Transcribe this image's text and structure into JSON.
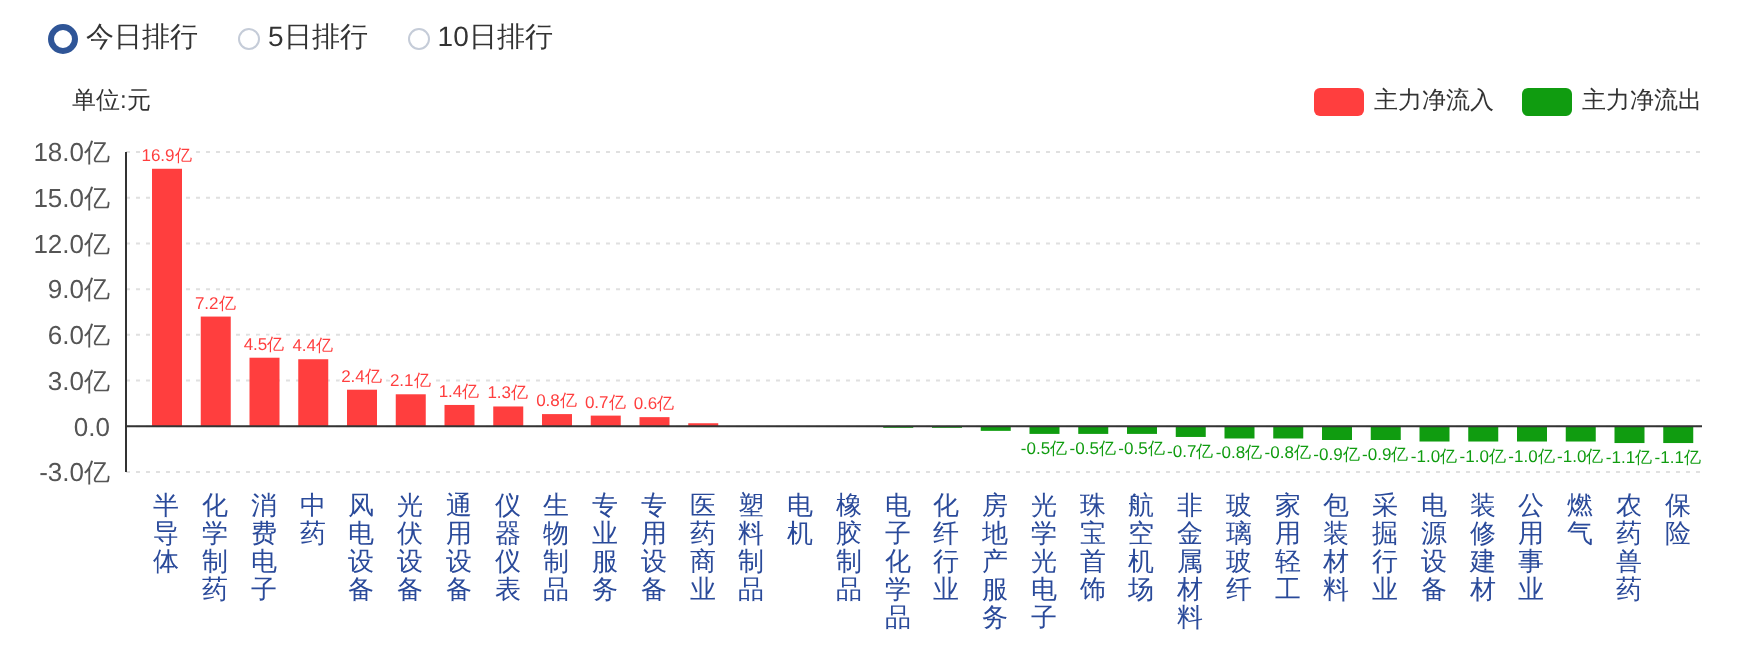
{
  "chart_data": {
    "type": "bar",
    "ylabel": "单位:元",
    "annotations": [
      "今日排行",
      "5日排行",
      "10日排行"
    ],
    "categories": [
      "半导体",
      "化学制药",
      "消费电子",
      "中药",
      "风电设备",
      "光伏设备",
      "通用设备",
      "仪器仪表",
      "生物制品",
      "专业服务",
      "专用设备",
      "医药商业",
      "塑料制品",
      "电机",
      "橡胶制品",
      "电子化学品",
      "化纤行业",
      "房地产服务",
      "光学光电子",
      "珠宝首饰",
      "航空机场",
      "非金属材料",
      "玻璃玻纤",
      "家用轻工",
      "包装材料",
      "采掘行业",
      "电源设备",
      "装修建材",
      "公用事业",
      "燃气",
      "农药兽药",
      "保险"
    ],
    "stacked": true,
    "series": [
      {
        "name": "主力净流入",
        "color": "#ff3e3e",
        "values": [
          16.9,
          7.2,
          4.5,
          4.4,
          2.4,
          2.1,
          1.4,
          1.3,
          0.8,
          0.7,
          0.6,
          0.2,
          null,
          0,
          null,
          null,
          null,
          null,
          null,
          null,
          null,
          null,
          null,
          null,
          null,
          null,
          null,
          null,
          null,
          null,
          null,
          null
        ],
        "value_labels": [
          "16.9亿",
          "7.2亿",
          "4.5亿",
          "4.4亿",
          "2.4亿",
          "2.1亿",
          "1.4亿",
          "1.3亿",
          "0.8亿",
          "0.7亿",
          "0.6亿",
          null,
          null,
          null,
          null,
          null,
          null,
          null,
          null,
          null,
          null,
          null,
          null,
          null,
          null,
          null,
          null,
          null,
          null,
          null,
          null,
          null
        ]
      },
      {
        "name": "主力净流出",
        "color": "#109c10",
        "values": [
          null,
          null,
          null,
          null,
          null,
          null,
          null,
          null,
          null,
          null,
          null,
          null,
          null,
          null,
          0,
          -0.1,
          -0.1,
          -0.3,
          -0.5,
          -0.5,
          -0.5,
          -0.7,
          -0.8,
          -0.8,
          -0.9,
          -0.9,
          -1.0,
          -1.0,
          -1.0,
          -1.0,
          -1.1,
          -1.1
        ],
        "value_labels": [
          null,
          null,
          null,
          null,
          null,
          null,
          null,
          null,
          null,
          null,
          null,
          null,
          null,
          null,
          null,
          null,
          null,
          null,
          "-0.5亿",
          "-0.5亿",
          "-0.5亿",
          "-0.7亿",
          "-0.8亿",
          "-0.8亿",
          "-0.9亿",
          "-0.9亿",
          "-1.0亿",
          "-1.0亿",
          "-1.0亿",
          "-1.0亿",
          "-1.1亿",
          "-1.1亿"
        ]
      }
    ],
    "ylim": [
      -3,
      18
    ],
    "yticks": [
      {
        "value": -3,
        "label": "-3.0亿"
      },
      {
        "value": 0,
        "label": "0.0"
      },
      {
        "value": 3,
        "label": "3.0亿"
      },
      {
        "value": 6,
        "label": "6.0亿"
      },
      {
        "value": 9,
        "label": "9.0亿"
      },
      {
        "value": 12,
        "label": "12.0亿"
      },
      {
        "value": 15,
        "label": "15.0亿"
      },
      {
        "value": 18,
        "label": "18.0亿"
      }
    ],
    "ref_lines": [
      {
        "axis": "y",
        "value": 0,
        "color": "#333333"
      }
    ],
    "grid": "y",
    "legend": "top right"
  }
}
